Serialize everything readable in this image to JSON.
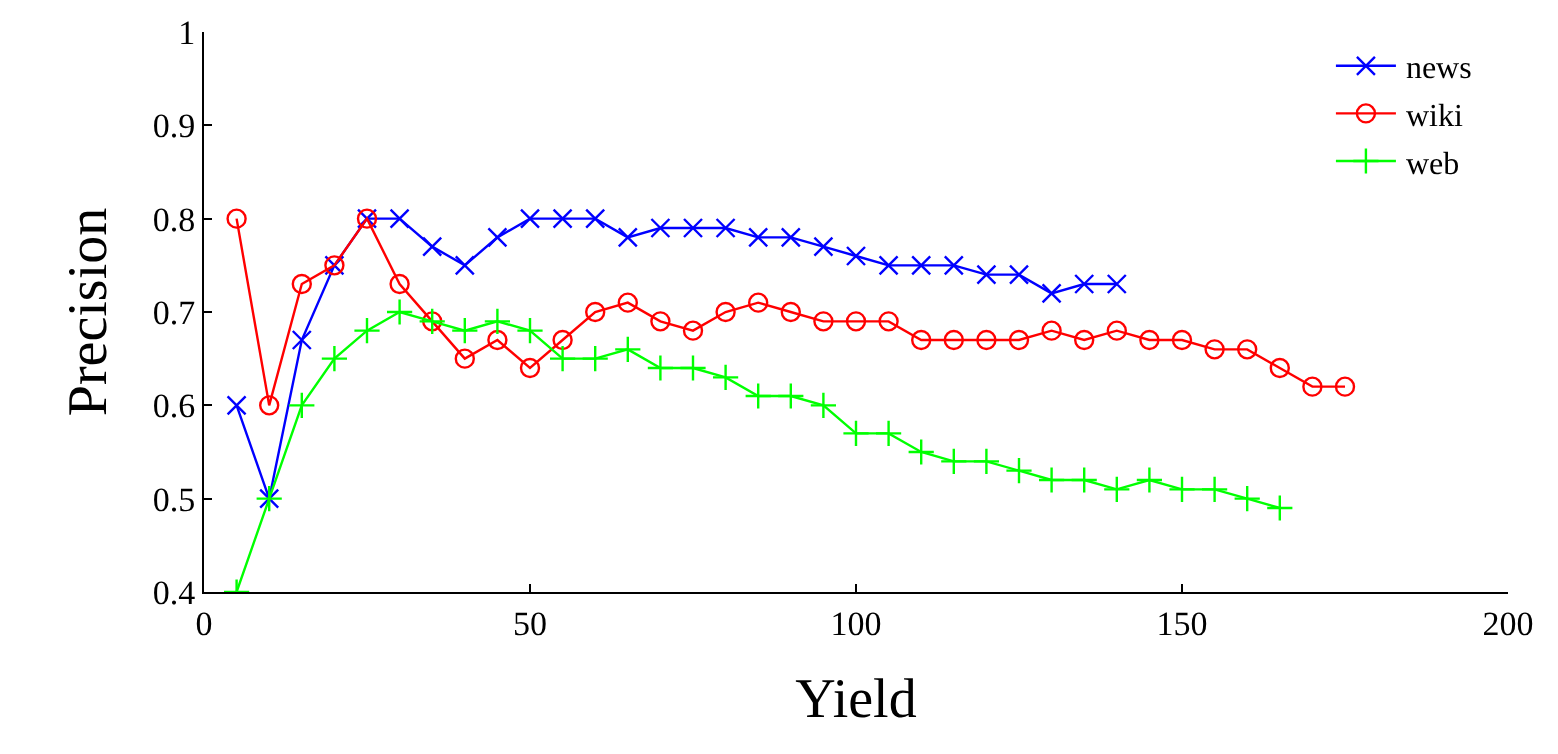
{
  "chart_data": {
    "type": "line",
    "xlabel": "Yield",
    "ylabel": "Precision",
    "xlim": [
      0,
      200
    ],
    "xticks": [
      0,
      50,
      100,
      150,
      200
    ],
    "ylim": [
      0.4,
      1
    ],
    "yticks": [
      0.4,
      0.5,
      0.6,
      0.7,
      0.8,
      0.9,
      1
    ],
    "grid": false,
    "legend": "top right",
    "series": [
      {
        "name": "news",
        "color": "#0000ff",
        "marker": "cross",
        "x": [
          5,
          10,
          15,
          20,
          25,
          30,
          35,
          40,
          45,
          50,
          55,
          60,
          65,
          70,
          75,
          80,
          85,
          90,
          95,
          100,
          105,
          110,
          115,
          120,
          125,
          130,
          135,
          140
        ],
        "values": [
          0.6,
          0.5,
          0.67,
          0.75,
          0.8,
          0.8,
          0.77,
          0.75,
          0.78,
          0.8,
          0.8,
          0.8,
          0.78,
          0.79,
          0.79,
          0.79,
          0.78,
          0.78,
          0.77,
          0.76,
          0.75,
          0.75,
          0.75,
          0.74,
          0.74,
          0.72,
          0.73,
          0.73
        ]
      },
      {
        "name": "wiki",
        "color": "#ff0000",
        "marker": "circle",
        "x": [
          5,
          10,
          15,
          20,
          25,
          30,
          35,
          40,
          45,
          50,
          55,
          60,
          65,
          70,
          75,
          80,
          85,
          90,
          95,
          100,
          105,
          110,
          115,
          120,
          125,
          130,
          135,
          140,
          145,
          150,
          155,
          160,
          165,
          170,
          175
        ],
        "values": [
          0.8,
          0.6,
          0.73,
          0.75,
          0.8,
          0.73,
          0.69,
          0.65,
          0.67,
          0.64,
          0.67,
          0.7,
          0.71,
          0.69,
          0.68,
          0.7,
          0.71,
          0.7,
          0.69,
          0.69,
          0.69,
          0.67,
          0.67,
          0.67,
          0.67,
          0.68,
          0.67,
          0.68,
          0.67,
          0.67,
          0.66,
          0.66,
          0.64,
          0.62,
          0.62
        ]
      },
      {
        "name": "web",
        "color": "#00ff00",
        "marker": "plus",
        "x": [
          5,
          10,
          15,
          20,
          25,
          30,
          35,
          40,
          45,
          50,
          55,
          60,
          65,
          70,
          75,
          80,
          85,
          90,
          95,
          100,
          105,
          110,
          115,
          120,
          125,
          130,
          135,
          140,
          145,
          150,
          155,
          160,
          165
        ],
        "values": [
          0.4,
          0.5,
          0.6,
          0.65,
          0.68,
          0.7,
          0.69,
          0.68,
          0.69,
          0.68,
          0.65,
          0.65,
          0.66,
          0.64,
          0.64,
          0.63,
          0.61,
          0.61,
          0.6,
          0.57,
          0.57,
          0.55,
          0.54,
          0.54,
          0.53,
          0.52,
          0.52,
          0.51,
          0.52,
          0.51,
          0.51,
          0.5,
          0.49
        ]
      }
    ]
  }
}
